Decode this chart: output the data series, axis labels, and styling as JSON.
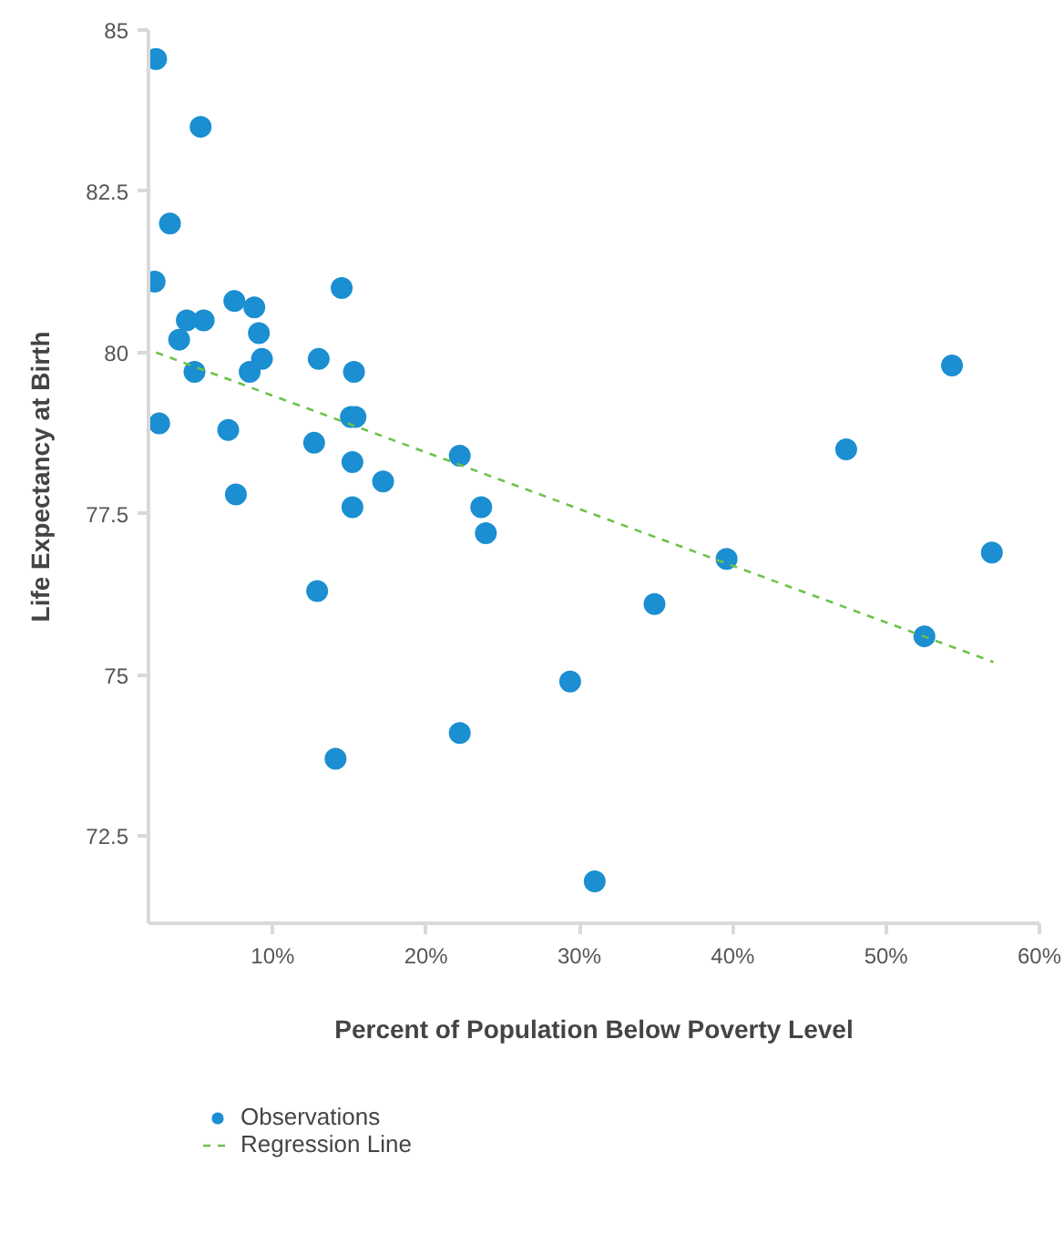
{
  "chart_data": {
    "type": "scatter",
    "xlabel": "Percent of Population Below Poverty Level",
    "ylabel": "Life Expectancy at Birth",
    "xlim": [
      1.9,
      60
    ],
    "ylim": [
      71.15,
      85
    ],
    "xticks": [
      {
        "value": 10,
        "label": "10%"
      },
      {
        "value": 20,
        "label": "20%"
      },
      {
        "value": 30,
        "label": "30%"
      },
      {
        "value": 40,
        "label": "40%"
      },
      {
        "value": 50,
        "label": "50%"
      },
      {
        "value": 60,
        "label": "60%"
      }
    ],
    "yticks": [
      72.5,
      75,
      77.5,
      80,
      82.5,
      85
    ],
    "legend": "bottom left",
    "series": [
      {
        "name": "Observations",
        "marker": "circle",
        "color": "#1b8fd1",
        "x": [
          2.4,
          5.3,
          3.3,
          2.3,
          14.5,
          7.5,
          8.8,
          4.4,
          5.5,
          9.1,
          3.9,
          9.3,
          13.0,
          4.9,
          8.5,
          15.3,
          54.3,
          15.1,
          15.4,
          2.6,
          7.1,
          12.7,
          47.4,
          22.2,
          15.2,
          17.2,
          7.6,
          23.6,
          15.2,
          23.9,
          56.9,
          39.6,
          12.9,
          34.9,
          52.5,
          29.4,
          22.2,
          14.1,
          31.0
        ],
        "values": [
          84.55,
          83.5,
          82.0,
          81.1,
          81.0,
          80.8,
          80.7,
          80.5,
          80.5,
          80.3,
          80.2,
          79.9,
          79.9,
          79.7,
          79.7,
          79.7,
          79.8,
          79.0,
          79.0,
          78.9,
          78.8,
          78.6,
          78.5,
          78.4,
          78.3,
          78.0,
          77.8,
          77.6,
          77.6,
          77.2,
          76.9,
          76.8,
          76.3,
          76.1,
          75.6,
          74.9,
          74.1,
          73.7,
          71.8
        ]
      },
      {
        "name": "Regression Line",
        "type": "line",
        "color": "#6cc24a",
        "line_style": "dashed",
        "x": [
          2.4,
          57.0
        ],
        "values": [
          80.0,
          75.2
        ]
      }
    ]
  }
}
